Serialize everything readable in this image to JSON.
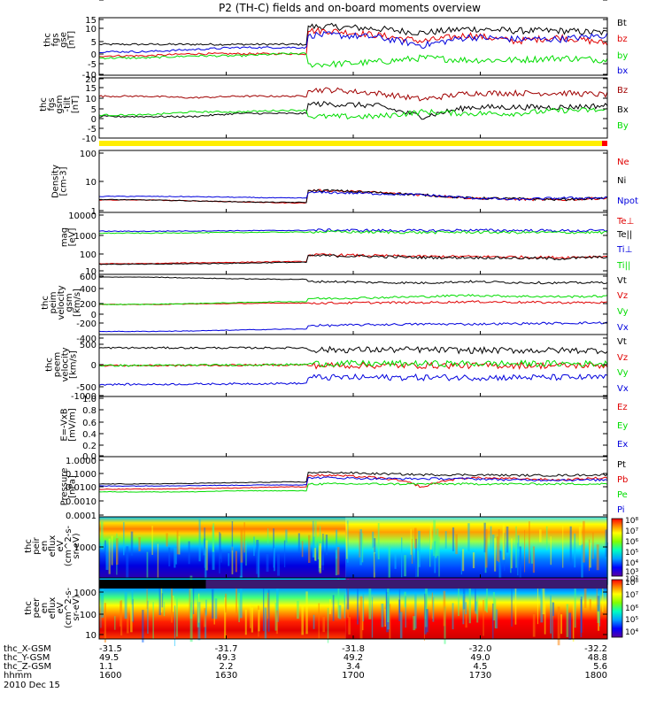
{
  "title": "P2 (TH-C) fields and on-board moments overview",
  "colors": {
    "black": "#000000",
    "red": "#e00000",
    "green": "#00dd00",
    "blue": "#0000dd",
    "darkred": "#a00000",
    "yellow": "#ffee00",
    "flagred": "#ff0000"
  },
  "chart_data": [
    {
      "type": "line",
      "panel": "fgs_gse",
      "ylabel_lines": [
        "thc",
        "fgs",
        "gse",
        "[nT]"
      ],
      "ylim": [
        -10,
        15
      ],
      "yticks": [
        "15",
        "10",
        "5",
        "0",
        "-5",
        "-10"
      ],
      "series": [
        {
          "name": "Bt",
          "color": "#000000",
          "levels": [
            3.5,
            3.5,
            3.5,
            3.5,
            3.5,
            12,
            11,
            9,
            11,
            10,
            10,
            9
          ]
        },
        {
          "name": "bz",
          "color": "#e00000",
          "levels": [
            -2,
            -2,
            -1,
            -1,
            -1,
            10,
            8,
            5,
            8,
            5,
            7,
            4
          ]
        },
        {
          "name": "by",
          "color": "#00dd00",
          "levels": [
            -3,
            -3,
            -2,
            -2,
            -1,
            -6,
            -5,
            -3,
            -4,
            -4,
            -3,
            -4
          ]
        },
        {
          "name": "bx",
          "color": "#0000dd",
          "levels": [
            0,
            0,
            1,
            2,
            2,
            8,
            7,
            3,
            7,
            6,
            6,
            8
          ]
        }
      ]
    },
    {
      "type": "line",
      "panel": "fgs_gsm",
      "ylabel_lines": [
        "thc",
        "fgs",
        "gsm",
        "-tilt",
        "[nT]"
      ],
      "ylim": [
        -15,
        20
      ],
      "yticks": [
        "20",
        "15",
        "10",
        "5",
        "0",
        "-5",
        "-10"
      ],
      "series": [
        {
          "name": "Bz",
          "color": "#a00000",
          "levels": [
            10,
            10,
            9,
            10,
            10,
            14,
            12,
            8,
            12,
            12,
            12,
            11
          ]
        },
        {
          "name": "Bx",
          "color": "#000000",
          "levels": [
            -3,
            -3,
            -3,
            -1,
            -1,
            5,
            4,
            -3,
            3,
            3,
            3,
            4
          ]
        },
        {
          "name": "By",
          "color": "#00dd00",
          "levels": [
            -2,
            -2,
            0,
            0,
            1,
            -3,
            -3,
            0,
            -1,
            -1,
            1,
            1
          ]
        }
      ]
    },
    {
      "type": "line",
      "panel": "density",
      "scale": "log",
      "ylabel_lines": [
        "Density",
        "[cm-3]"
      ],
      "ylim": [
        1,
        200
      ],
      "yticks": [
        "100",
        "10",
        "1"
      ],
      "series": [
        {
          "name": "Ne",
          "color": "#e00000",
          "levels": [
            2.5,
            2.5,
            2.3,
            2.1,
            1.9,
            6,
            5,
            4,
            3,
            2.7,
            2.5,
            3
          ]
        },
        {
          "name": "Ni",
          "color": "#000000",
          "levels": [
            2.6,
            2.5,
            2.3,
            2.1,
            2,
            6,
            5,
            4,
            3,
            2.8,
            2.6,
            3
          ]
        },
        {
          "name": "Npot",
          "color": "#0000dd",
          "levels": [
            3.5,
            3.5,
            3.4,
            3.2,
            3,
            5,
            4.5,
            4,
            3,
            2.6,
            3,
            3
          ]
        }
      ]
    },
    {
      "type": "line",
      "panel": "temperature",
      "scale": "log",
      "ylabel_lines": [
        "mag",
        "[eV]"
      ],
      "ylim": [
        5,
        12000
      ],
      "yticks": [
        "10000",
        "1000",
        "100",
        "10"
      ],
      "series": [
        {
          "name": "Te⊥",
          "color": "#e00000",
          "levels": [
            15,
            15,
            17,
            18,
            20,
            50,
            45,
            40,
            40,
            38,
            35,
            42
          ]
        },
        {
          "name": "Te||",
          "color": "#000000",
          "levels": [
            14,
            14,
            15,
            16,
            18,
            45,
            40,
            35,
            35,
            33,
            30,
            38
          ]
        },
        {
          "name": "Ti⊥",
          "color": "#0000dd",
          "levels": [
            1300,
            1300,
            1350,
            1400,
            1450,
            1500,
            1450,
            1400,
            1500,
            1450,
            1400,
            1400
          ]
        },
        {
          "name": "Ti||",
          "color": "#00dd00",
          "levels": [
            1000,
            1000,
            1050,
            1100,
            1150,
            1200,
            1150,
            1100,
            1150,
            1100,
            1100,
            1100
          ]
        }
      ]
    },
    {
      "type": "line",
      "panel": "peim_velocity",
      "ylabel_lines": [
        "thc",
        "peim",
        "velocity",
        "gsm",
        "[km/s]"
      ],
      "ylim": [
        -600,
        600
      ],
      "yticks": [
        "600",
        "400",
        "200",
        "0",
        "-200",
        "-400",
        "-600"
      ],
      "series": [
        {
          "name": "Vt",
          "color": "#000000",
          "levels": [
            600,
            600,
            580,
            560,
            550,
            500,
            480,
            470,
            500,
            480,
            470,
            480
          ]
        },
        {
          "name": "Vz",
          "color": "#e00000",
          "levels": [
            0,
            0,
            10,
            20,
            30,
            30,
            40,
            40,
            60,
            50,
            40,
            40
          ]
        },
        {
          "name": "Vy",
          "color": "#00dd00",
          "levels": [
            0,
            0,
            20,
            40,
            60,
            130,
            150,
            170,
            200,
            180,
            170,
            180
          ]
        },
        {
          "name": "Vx",
          "color": "#0000dd",
          "levels": [
            -590,
            -590,
            -580,
            -560,
            -540,
            -460,
            -440,
            -430,
            -430,
            -420,
            -410,
            -400
          ]
        }
      ]
    },
    {
      "type": "line",
      "panel": "peem_velocity",
      "ylabel_lines": [
        "thc",
        "peem",
        "velocity",
        "[km/s]"
      ],
      "ylim": [
        -900,
        900
      ],
      "yticks": [
        "500",
        "0",
        "-500",
        "-1000"
      ],
      "series": [
        {
          "name": "Vt",
          "color": "#000000",
          "levels": [
            560,
            560,
            560,
            560,
            560,
            500,
            500,
            500,
            480,
            480,
            480,
            480
          ]
        },
        {
          "name": "Vz",
          "color": "#e00000",
          "levels": [
            0,
            0,
            0,
            10,
            20,
            0,
            0,
            0,
            0,
            0,
            0,
            0
          ]
        },
        {
          "name": "Vy",
          "color": "#00dd00",
          "levels": [
            0,
            0,
            10,
            20,
            30,
            60,
            60,
            60,
            60,
            60,
            60,
            60
          ]
        },
        {
          "name": "Vx",
          "color": "#0000dd",
          "levels": [
            -600,
            -600,
            -590,
            -580,
            -570,
            -380,
            -380,
            -380,
            -380,
            -380,
            -380,
            -380
          ]
        }
      ]
    },
    {
      "type": "line",
      "panel": "efield",
      "ylabel_lines": [
        "E=-VxB",
        "[mV/m]"
      ],
      "ylim": [
        0,
        1
      ],
      "yticks": [
        "1.0",
        "0.8",
        "0.6",
        "0.4",
        "0.2",
        "0.0"
      ],
      "series": [
        {
          "name": "Ez",
          "color": "#e00000",
          "levels": []
        },
        {
          "name": "Ey",
          "color": "#00dd00",
          "levels": []
        },
        {
          "name": "Ex",
          "color": "#0000dd",
          "levels": []
        }
      ]
    },
    {
      "type": "line",
      "panel": "pressure",
      "scale": "log",
      "ylabel_lines": [
        "Pressure",
        "[nPa]"
      ],
      "ylim": [
        0.0001,
        1.5
      ],
      "yticks": [
        "1.0000",
        "0.1000",
        "0.0100",
        "0.0010",
        "0.0001"
      ],
      "series": [
        {
          "name": "Pt",
          "color": "#000000",
          "levels": [
            0.02,
            0.02,
            0.022,
            0.025,
            0.028,
            0.15,
            0.12,
            0.1,
            0.1,
            0.09,
            0.09,
            0.1
          ]
        },
        {
          "name": "Pb",
          "color": "#e00000",
          "levels": [
            0.008,
            0.008,
            0.009,
            0.01,
            0.012,
            0.09,
            0.06,
            0.01,
            0.06,
            0.05,
            0.04,
            0.06
          ]
        },
        {
          "name": "Pe",
          "color": "#00dd00",
          "levels": [
            0.005,
            0.005,
            0.005,
            0.006,
            0.006,
            0.02,
            0.02,
            0.02,
            0.02,
            0.02,
            0.02,
            0.02
          ]
        },
        {
          "name": "Pi",
          "color": "#0000dd",
          "levels": [
            0.014,
            0.014,
            0.015,
            0.016,
            0.017,
            0.06,
            0.05,
            0.05,
            0.05,
            0.04,
            0.04,
            0.04
          ]
        }
      ]
    },
    {
      "type": "heatmap",
      "panel": "peir_spec",
      "ylabel_lines": [
        "thc",
        "peir",
        "en",
        "eflux",
        "eV",
        "(cm^2-s-",
        "sr-eV)"
      ],
      "yticks": [
        "1000"
      ],
      "colorbar_ticks": [
        "10⁸",
        "10⁷",
        "10⁶",
        "10⁵",
        "10⁴",
        "10³",
        "10²"
      ]
    },
    {
      "type": "heatmap",
      "panel": "peer_spec",
      "ylabel_lines": [
        "thc",
        "peer",
        "en",
        "eflux",
        "eV",
        "(cm^2-s-",
        "sr-eV)"
      ],
      "yticks": [
        "1000",
        "100",
        "10"
      ],
      "colorbar_ticks": [
        "10⁸",
        "10⁷",
        "10⁶",
        "10⁵",
        "10⁴"
      ]
    }
  ],
  "xaxis": {
    "rows": [
      {
        "label": "thc_X-GSM",
        "values": [
          "-31.5",
          "-31.7",
          "-31.8",
          "-32.0",
          "-32.2"
        ]
      },
      {
        "label": "thc_Y-GSM",
        "values": [
          "49.5",
          "49.3",
          "49.2",
          "49.0",
          "48.8"
        ]
      },
      {
        "label": "thc_Z-GSM",
        "values": [
          "1.1",
          "2.2",
          "3.4",
          "4.5",
          "5.6"
        ]
      },
      {
        "label": "hhmm",
        "values": [
          "1600",
          "1630",
          "1700",
          "1730",
          "1800"
        ]
      }
    ],
    "date": "2010 Dec 15"
  }
}
